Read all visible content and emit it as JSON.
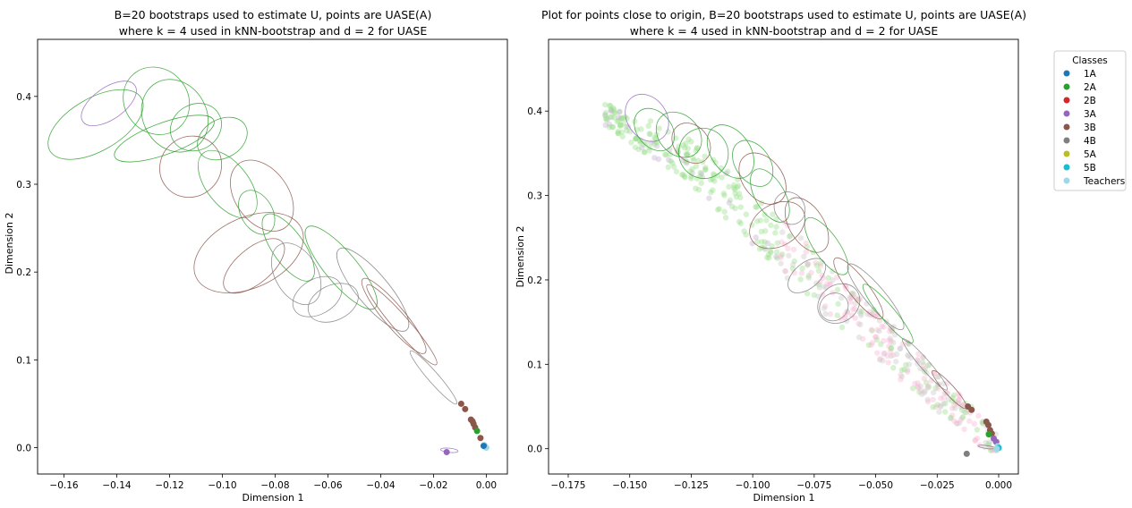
{
  "figure": {
    "legend": {
      "title": "Classes",
      "placement": "outside-right",
      "entries": [
        {
          "label": "1A",
          "color": "#1f77b4"
        },
        {
          "label": "2A",
          "color": "#2ca02c"
        },
        {
          "label": "2B",
          "color": "#d62728"
        },
        {
          "label": "3A",
          "color": "#9467bd"
        },
        {
          "label": "3B",
          "color": "#8c564b"
        },
        {
          "label": "4B",
          "color": "#7f7f7f"
        },
        {
          "label": "5A",
          "color": "#bcbd22"
        },
        {
          "label": "5B",
          "color": "#17becf"
        },
        {
          "label": "Teachers",
          "color": "#9edae5"
        }
      ]
    }
  },
  "chart_data": [
    {
      "type": "scatter",
      "title_line1": "B=20 bootstraps used to estimate U, points are UASE(A)",
      "title_line2": "where k = 4 used in kNN-bootstrap and d = 2 for UASE",
      "xlabel": "Dimension 1",
      "ylabel": "Dimension 2",
      "xlim": [
        -0.17,
        0.008
      ],
      "ylim": [
        -0.03,
        0.465
      ],
      "xticks": [
        "−0.16",
        "−0.14",
        "−0.12",
        "−0.10",
        "−0.08",
        "−0.06",
        "−0.04",
        "−0.02",
        "0.00"
      ],
      "xtick_values": [
        -0.16,
        -0.14,
        -0.12,
        -0.1,
        -0.08,
        -0.06,
        -0.04,
        -0.02,
        0.0
      ],
      "yticks": [
        "0.0",
        "0.1",
        "0.2",
        "0.3",
        "0.4"
      ],
      "ytick_values": [
        0.0,
        0.1,
        0.2,
        0.3,
        0.4
      ],
      "grid": false,
      "points": [
        {
          "x": -0.0095,
          "y": 0.05,
          "cls": "3B"
        },
        {
          "x": -0.008,
          "y": 0.044,
          "cls": "3B"
        },
        {
          "x": -0.0058,
          "y": 0.032,
          "cls": "3B"
        },
        {
          "x": -0.0052,
          "y": 0.03,
          "cls": "3B"
        },
        {
          "x": -0.0048,
          "y": 0.027,
          "cls": "3B"
        },
        {
          "x": -0.0042,
          "y": 0.023,
          "cls": "3B"
        },
        {
          "x": -0.0035,
          "y": 0.019,
          "cls": "2A"
        },
        {
          "x": -0.0022,
          "y": 0.011,
          "cls": "3B"
        },
        {
          "x": -0.015,
          "y": -0.005,
          "cls": "3A"
        },
        {
          "x": -0.0008,
          "y": 0.003,
          "cls": "Teachers"
        },
        {
          "x": -0.0004,
          "y": 0.001,
          "cls": "5B"
        },
        {
          "x": 0.0,
          "y": 0.0,
          "cls": "Teachers"
        },
        {
          "x": -0.001,
          "y": 0.002,
          "cls": "1A"
        }
      ],
      "ellipses": [
        {
          "cx": -0.148,
          "cy": 0.368,
          "rx": 0.02,
          "ry": 0.03,
          "rot": -30,
          "cls": "2A"
        },
        {
          "cx": -0.143,
          "cy": 0.392,
          "rx": 0.012,
          "ry": 0.018,
          "rot": -35,
          "cls": "3A"
        },
        {
          "cx": -0.125,
          "cy": 0.395,
          "rx": 0.012,
          "ry": 0.04,
          "rot": -40,
          "cls": "2A"
        },
        {
          "cx": -0.118,
          "cy": 0.378,
          "rx": 0.012,
          "ry": 0.043,
          "rot": -30,
          "cls": "2A"
        },
        {
          "cx": -0.122,
          "cy": 0.352,
          "rx": 0.02,
          "ry": 0.018,
          "rot": -20,
          "cls": "2A"
        },
        {
          "cx": -0.11,
          "cy": 0.365,
          "rx": 0.01,
          "ry": 0.026,
          "rot": -30,
          "cls": "2A"
        },
        {
          "cx": -0.1,
          "cy": 0.352,
          "rx": 0.01,
          "ry": 0.022,
          "rot": -30,
          "cls": "2A"
        },
        {
          "cx": -0.112,
          "cy": 0.32,
          "rx": 0.012,
          "ry": 0.034,
          "rot": -40,
          "cls": "3B"
        },
        {
          "cx": -0.098,
          "cy": 0.3,
          "rx": 0.008,
          "ry": 0.045,
          "rot": -38,
          "cls": "2A"
        },
        {
          "cx": -0.085,
          "cy": 0.287,
          "rx": 0.01,
          "ry": 0.045,
          "rot": -36,
          "cls": "3B"
        },
        {
          "cx": -0.087,
          "cy": 0.268,
          "rx": 0.006,
          "ry": 0.027,
          "rot": -30,
          "cls": "2A"
        },
        {
          "cx": -0.09,
          "cy": 0.222,
          "rx": 0.022,
          "ry": 0.04,
          "rot": -25,
          "cls": "3B"
        },
        {
          "cx": -0.075,
          "cy": 0.228,
          "rx": 0.006,
          "ry": 0.045,
          "rot": -35,
          "cls": "2A"
        },
        {
          "cx": -0.088,
          "cy": 0.207,
          "rx": 0.014,
          "ry": 0.02,
          "rot": -40,
          "cls": "3B"
        },
        {
          "cx": -0.072,
          "cy": 0.198,
          "rx": 0.008,
          "ry": 0.038,
          "rot": -30,
          "cls": "4B"
        },
        {
          "cx": -0.064,
          "cy": 0.172,
          "rx": 0.01,
          "ry": 0.02,
          "rot": -30,
          "cls": "4B"
        },
        {
          "cx": -0.058,
          "cy": 0.165,
          "rx": 0.01,
          "ry": 0.02,
          "rot": -25,
          "cls": "4B"
        },
        {
          "cx": -0.055,
          "cy": 0.205,
          "rx": 0.006,
          "ry": 0.06,
          "rot": -40,
          "cls": "2A"
        },
        {
          "cx": -0.043,
          "cy": 0.18,
          "rx": 0.006,
          "ry": 0.06,
          "rot": -40,
          "cls": "4B"
        },
        {
          "cx": -0.035,
          "cy": 0.15,
          "rx": 0.004,
          "ry": 0.055,
          "rot": -40,
          "cls": "3B"
        },
        {
          "cx": -0.032,
          "cy": 0.14,
          "rx": 0.003,
          "ry": 0.06,
          "rot": -41,
          "cls": "3B"
        },
        {
          "cx": -0.02,
          "cy": 0.08,
          "rx": 0.002,
          "ry": 0.04,
          "rot": -41,
          "cls": "4B"
        },
        {
          "cx": -0.014,
          "cy": -0.003,
          "rx": 0.0008,
          "ry": 0.01,
          "rot": -84,
          "cls": "3A"
        }
      ]
    },
    {
      "type": "scatter",
      "title_line1": "Plot for points close to origin, B=20 bootstraps used to estimate U, points are UASE(A)",
      "title_line2": "where k = 4 used in kNN-bootstrap and d = 2 for UASE",
      "xlabel": "Dimension 1",
      "ylabel": "Dimension 2",
      "xlim": [
        -0.183,
        0.008
      ],
      "ylim": [
        -0.03,
        0.485
      ],
      "xticks": [
        "−0.175",
        "−0.150",
        "−0.125",
        "−0.100",
        "−0.075",
        "−0.050",
        "−0.025",
        "0.000"
      ],
      "xtick_values": [
        -0.175,
        -0.15,
        -0.125,
        -0.1,
        -0.075,
        -0.05,
        -0.025,
        0.0
      ],
      "yticks": [
        "0.0",
        "0.1",
        "0.2",
        "0.3",
        "0.4"
      ],
      "ytick_values": [
        0.0,
        0.1,
        0.2,
        0.3,
        0.4
      ],
      "grid": false,
      "points": [
        {
          "x": -0.0125,
          "y": 0.05,
          "cls": "3B"
        },
        {
          "x": -0.011,
          "y": 0.046,
          "cls": "3B"
        },
        {
          "x": -0.005,
          "y": 0.032,
          "cls": "3B"
        },
        {
          "x": -0.0042,
          "y": 0.028,
          "cls": "3B"
        },
        {
          "x": -0.0035,
          "y": 0.022,
          "cls": "3B"
        },
        {
          "x": -0.0028,
          "y": 0.018,
          "cls": "3B"
        },
        {
          "x": -0.004,
          "y": 0.017,
          "cls": "2A"
        },
        {
          "x": -0.002,
          "y": 0.012,
          "cls": "3A"
        },
        {
          "x": -0.001,
          "y": 0.008,
          "cls": "3A"
        },
        {
          "x": -0.013,
          "y": -0.006,
          "cls": "4B"
        },
        {
          "x": -0.0004,
          "y": 0.003,
          "cls": "Teachers"
        },
        {
          "x": 0.0,
          "y": 0.001,
          "cls": "5B"
        },
        {
          "x": -0.0008,
          "y": 0.0,
          "cls": "Teachers"
        }
      ],
      "ellipses": [
        {
          "cx": -0.143,
          "cy": 0.392,
          "rx": 0.008,
          "ry": 0.03,
          "rot": -35,
          "cls": "3A"
        },
        {
          "cx": -0.14,
          "cy": 0.378,
          "rx": 0.007,
          "ry": 0.028,
          "rot": -40,
          "cls": "2A"
        },
        {
          "cx": -0.13,
          "cy": 0.372,
          "rx": 0.008,
          "ry": 0.03,
          "rot": -45,
          "cls": "2A"
        },
        {
          "cx": -0.125,
          "cy": 0.362,
          "rx": 0.007,
          "ry": 0.026,
          "rot": -40,
          "cls": "3B"
        },
        {
          "cx": -0.12,
          "cy": 0.35,
          "rx": 0.01,
          "ry": 0.03,
          "rot": -30,
          "cls": "2A"
        },
        {
          "cx": -0.109,
          "cy": 0.352,
          "rx": 0.008,
          "ry": 0.035,
          "rot": -35,
          "cls": "2A"
        },
        {
          "cx": -0.1,
          "cy": 0.338,
          "rx": 0.007,
          "ry": 0.03,
          "rot": -35,
          "cls": "2A"
        },
        {
          "cx": -0.096,
          "cy": 0.32,
          "rx": 0.008,
          "ry": 0.034,
          "rot": -38,
          "cls": "3B"
        },
        {
          "cx": -0.093,
          "cy": 0.3,
          "rx": 0.006,
          "ry": 0.035,
          "rot": -30,
          "cls": "2A"
        },
        {
          "cx": -0.09,
          "cy": 0.265,
          "rx": 0.012,
          "ry": 0.025,
          "rot": -30,
          "cls": "3B"
        },
        {
          "cx": -0.085,
          "cy": 0.285,
          "rx": 0.006,
          "ry": 0.02,
          "rot": -35,
          "cls": "4B"
        },
        {
          "cx": -0.078,
          "cy": 0.265,
          "rx": 0.007,
          "ry": 0.036,
          "rot": -32,
          "cls": "3B"
        },
        {
          "cx": -0.07,
          "cy": 0.24,
          "rx": 0.005,
          "ry": 0.04,
          "rot": -35,
          "cls": "2A"
        },
        {
          "cx": -0.078,
          "cy": 0.205,
          "rx": 0.009,
          "ry": 0.015,
          "rot": -40,
          "cls": "4B"
        },
        {
          "cx": -0.065,
          "cy": 0.172,
          "rx": 0.009,
          "ry": 0.022,
          "rot": -35,
          "cls": "4B"
        },
        {
          "cx": -0.067,
          "cy": 0.168,
          "rx": 0.006,
          "ry": 0.016,
          "rot": -35,
          "cls": "4B"
        },
        {
          "cx": -0.057,
          "cy": 0.19,
          "rx": 0.004,
          "ry": 0.045,
          "rot": -38,
          "cls": "3B"
        },
        {
          "cx": -0.05,
          "cy": 0.18,
          "rx": 0.004,
          "ry": 0.05,
          "rot": -40,
          "cls": "4B"
        },
        {
          "cx": -0.045,
          "cy": 0.16,
          "rx": 0.003,
          "ry": 0.045,
          "rot": -40,
          "cls": "2A"
        },
        {
          "cx": -0.03,
          "cy": 0.1,
          "rx": 0.002,
          "ry": 0.04,
          "rot": -41,
          "cls": "4B"
        },
        {
          "cx": -0.02,
          "cy": 0.07,
          "rx": 0.002,
          "ry": 0.03,
          "rot": -42,
          "cls": "3B"
        },
        {
          "cx": -0.005,
          "cy": 0.002,
          "rx": 0.0006,
          "ry": 0.01,
          "rot": -82,
          "cls": "4B"
        }
      ]
    }
  ]
}
